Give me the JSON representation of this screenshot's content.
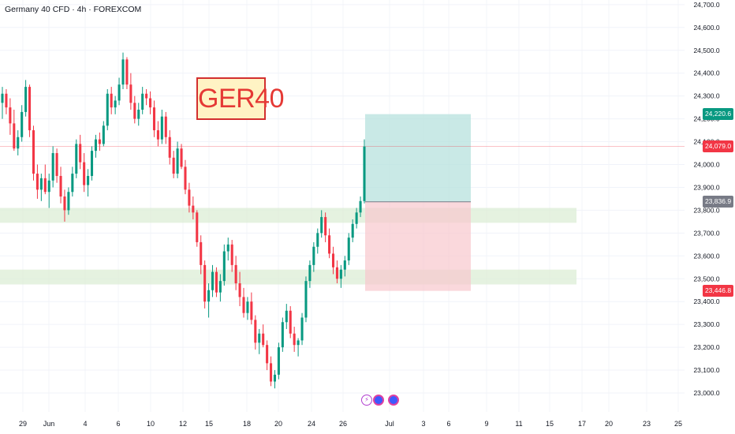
{
  "header": {
    "symbol_title": "Germany 40 CFD · 4h · FOREXCOM"
  },
  "annotation": {
    "label": "GER40"
  },
  "chart_data": {
    "type": "candlestick",
    "ylim": [
      22980,
      24730
    ],
    "y_ticks": [
      "24,700.0",
      "24,600.0",
      "24,500.0",
      "24,400.0",
      "24,300.0",
      "24,200.0",
      "24,100.0",
      "24,000.0",
      "23,900.0",
      "23,800.0",
      "23,700.0",
      "23,600.0",
      "23,500.0",
      "23,400.0",
      "23,300.0",
      "23,200.0",
      "23,100.0",
      "23,000.0"
    ],
    "y_tick_values": [
      24700,
      24600,
      24500,
      24400,
      24300,
      24200,
      24100,
      24000,
      23900,
      23800,
      23700,
      23600,
      23500,
      23400,
      23300,
      23200,
      23100,
      23000
    ],
    "x_ticks": [
      "29",
      "Jun",
      "4",
      "6",
      "10",
      "12",
      "15",
      "18",
      "20",
      "24",
      "26",
      "Jul",
      "3",
      "6",
      "9",
      "11",
      "15",
      "17",
      "20",
      "23",
      "25"
    ],
    "price_tags": {
      "take_profit": "24,220.6",
      "current": "24,079.0",
      "entry": "23,836.9",
      "stop_loss": "23,446.8"
    },
    "levels": {
      "take_profit": 24220.6,
      "current": 24079.0,
      "entry": 23836.9,
      "stop_loss": 23446.8
    },
    "support_zones": [
      [
        23745,
        23810
      ],
      [
        23475,
        23540
      ]
    ],
    "colors": {
      "up": "#089981",
      "down": "#f23645",
      "profit_zone": "#b2dfdb",
      "loss_zone": "#f8c7cd",
      "support_zone": "#dcedd5",
      "current_tag": "#f23645",
      "tp_tag": "#089981",
      "entry_tag": "#787b86",
      "sl_tag": "#f23645"
    },
    "candles": [
      [
        24270,
        24340,
        24200,
        24310
      ],
      [
        24310,
        24330,
        24220,
        24250
      ],
      [
        24250,
        24290,
        24130,
        24180
      ],
      [
        24180,
        24240,
        24060,
        24070
      ],
      [
        24070,
        24150,
        24040,
        24120
      ],
      [
        24120,
        24260,
        24100,
        24230
      ],
      [
        24230,
        24370,
        24210,
        24340
      ],
      [
        24340,
        24350,
        24120,
        24150
      ],
      [
        24150,
        24170,
        23930,
        23960
      ],
      [
        23960,
        24000,
        23850,
        23890
      ],
      [
        23890,
        23960,
        23840,
        23940
      ],
      [
        23940,
        24000,
        23870,
        23880
      ],
      [
        23880,
        23960,
        23810,
        23930
      ],
      [
        23930,
        24080,
        23900,
        24050
      ],
      [
        24050,
        24070,
        23920,
        23950
      ],
      [
        23950,
        23990,
        23830,
        23860
      ],
      [
        23860,
        23890,
        23750,
        23800
      ],
      [
        23800,
        23900,
        23780,
        23880
      ],
      [
        23880,
        23990,
        23860,
        23960
      ],
      [
        23960,
        24110,
        23940,
        24090
      ],
      [
        24090,
        24130,
        23980,
        24010
      ],
      [
        24010,
        24050,
        23880,
        23910
      ],
      [
        23910,
        23980,
        23860,
        23950
      ],
      [
        23950,
        24080,
        23930,
        24060
      ],
      [
        24060,
        24130,
        24030,
        24110
      ],
      [
        24110,
        24140,
        24060,
        24090
      ],
      [
        24090,
        24190,
        24080,
        24170
      ],
      [
        24170,
        24330,
        24150,
        24310
      ],
      [
        24310,
        24340,
        24220,
        24250
      ],
      [
        24250,
        24300,
        24220,
        24280
      ],
      [
        24280,
        24380,
        24260,
        24350
      ],
      [
        24350,
        24490,
        24330,
        24460
      ],
      [
        24460,
        24470,
        24330,
        24350
      ],
      [
        24350,
        24400,
        24240,
        24270
      ],
      [
        24270,
        24300,
        24180,
        24200
      ],
      [
        24200,
        24270,
        24170,
        24240
      ],
      [
        24240,
        24340,
        24220,
        24310
      ],
      [
        24310,
        24330,
        24260,
        24290
      ],
      [
        24290,
        24320,
        24220,
        24250
      ],
      [
        24250,
        24280,
        24120,
        24150
      ],
      [
        24150,
        24190,
        24080,
        24110
      ],
      [
        24110,
        24240,
        24090,
        24210
      ],
      [
        24210,
        24230,
        24090,
        24120
      ],
      [
        24120,
        24150,
        24000,
        24030
      ],
      [
        24030,
        24060,
        23940,
        23960
      ],
      [
        23960,
        24100,
        23940,
        24070
      ],
      [
        24070,
        24090,
        23980,
        23990
      ],
      [
        23990,
        24020,
        23870,
        23890
      ],
      [
        23890,
        23920,
        23790,
        23820
      ],
      [
        23820,
        23860,
        23760,
        23790
      ],
      [
        23790,
        23800,
        23640,
        23660
      ],
      [
        23660,
        23690,
        23520,
        23560
      ],
      [
        23560,
        23580,
        23370,
        23400
      ],
      [
        23400,
        23480,
        23330,
        23450
      ],
      [
        23450,
        23560,
        23420,
        23530
      ],
      [
        23530,
        23550,
        23420,
        23440
      ],
      [
        23440,
        23520,
        23400,
        23490
      ],
      [
        23490,
        23650,
        23470,
        23620
      ],
      [
        23620,
        23680,
        23580,
        23650
      ],
      [
        23650,
        23670,
        23530,
        23560
      ],
      [
        23560,
        23600,
        23450,
        23480
      ],
      [
        23480,
        23530,
        23380,
        23420
      ],
      [
        23420,
        23460,
        23330,
        23350
      ],
      [
        23350,
        23420,
        23320,
        23400
      ],
      [
        23400,
        23440,
        23300,
        23320
      ],
      [
        23320,
        23340,
        23190,
        23220
      ],
      [
        23220,
        23280,
        23170,
        23260
      ],
      [
        23260,
        23300,
        23200,
        23210
      ],
      [
        23210,
        23230,
        23100,
        23130
      ],
      [
        23130,
        23160,
        23030,
        23050
      ],
      [
        23050,
        23100,
        23020,
        23080
      ],
      [
        23080,
        23220,
        23060,
        23200
      ],
      [
        23200,
        23330,
        23180,
        23310
      ],
      [
        23310,
        23390,
        23280,
        23360
      ],
      [
        23360,
        23380,
        23240,
        23260
      ],
      [
        23260,
        23290,
        23180,
        23210
      ],
      [
        23210,
        23240,
        23160,
        23230
      ],
      [
        23230,
        23350,
        23210,
        23330
      ],
      [
        23330,
        23510,
        23310,
        23490
      ],
      [
        23490,
        23580,
        23460,
        23560
      ],
      [
        23560,
        23660,
        23530,
        23640
      ],
      [
        23640,
        23720,
        23610,
        23700
      ],
      [
        23700,
        23800,
        23680,
        23770
      ],
      [
        23770,
        23790,
        23660,
        23690
      ],
      [
        23690,
        23720,
        23590,
        23610
      ],
      [
        23610,
        23640,
        23520,
        23550
      ],
      [
        23550,
        23580,
        23480,
        23500
      ],
      [
        23500,
        23560,
        23460,
        23540
      ],
      [
        23540,
        23600,
        23510,
        23580
      ],
      [
        23580,
        23700,
        23560,
        23680
      ],
      [
        23680,
        23760,
        23660,
        23740
      ],
      [
        23740,
        23810,
        23720,
        23790
      ],
      [
        23790,
        23860,
        23770,
        23840
      ],
      [
        23840,
        24110,
        23830,
        24079
      ]
    ]
  }
}
